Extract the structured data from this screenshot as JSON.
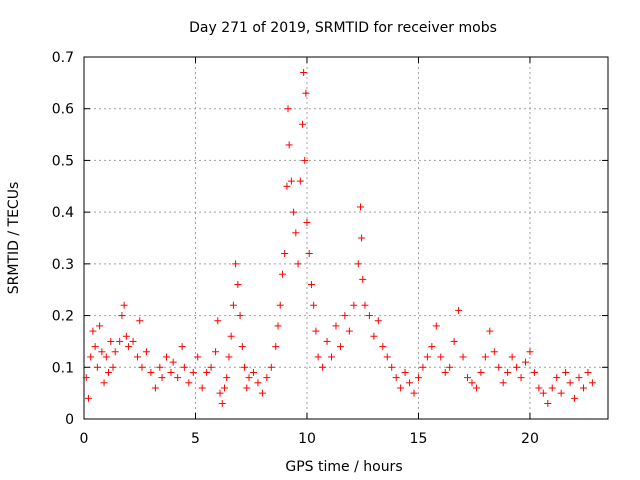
{
  "chart_data": {
    "type": "scatter",
    "title": "Day 271 of 2019, SRMTID for receiver mobs",
    "xlabel": "GPS time / hours",
    "ylabel": "SRMTID / TECUs",
    "xlim": [
      0,
      23.5
    ],
    "ylim": [
      0,
      0.7
    ],
    "xticks": [
      0,
      5,
      10,
      15,
      20
    ],
    "yticks": [
      0,
      0.1,
      0.2,
      0.3,
      0.4,
      0.5,
      0.6,
      0.7
    ],
    "xtick_labels": [
      "0",
      "5",
      "10",
      "15",
      "20"
    ],
    "ytick_labels": [
      "0",
      "0.1",
      "0.2",
      "0.3",
      "0.4",
      "0.5",
      "0.6",
      "0.7"
    ],
    "grid": true,
    "marker": "+",
    "series_color": "#ff0000",
    "series": [
      {
        "name": "SRMTID",
        "points": [
          [
            0.1,
            0.08
          ],
          [
            0.2,
            0.04
          ],
          [
            0.3,
            0.12
          ],
          [
            0.4,
            0.17
          ],
          [
            0.5,
            0.14
          ],
          [
            0.6,
            0.1
          ],
          [
            0.7,
            0.18
          ],
          [
            0.8,
            0.13
          ],
          [
            0.9,
            0.07
          ],
          [
            1.0,
            0.12
          ],
          [
            1.1,
            0.09
          ],
          [
            1.2,
            0.15
          ],
          [
            1.3,
            0.1
          ],
          [
            1.4,
            0.13
          ],
          [
            1.6,
            0.15
          ],
          [
            1.7,
            0.2
          ],
          [
            1.8,
            0.22
          ],
          [
            1.9,
            0.16
          ],
          [
            2.0,
            0.14
          ],
          [
            2.2,
            0.15
          ],
          [
            2.4,
            0.12
          ],
          [
            2.5,
            0.19
          ],
          [
            2.6,
            0.1
          ],
          [
            2.8,
            0.13
          ],
          [
            3.0,
            0.09
          ],
          [
            3.2,
            0.06
          ],
          [
            3.4,
            0.1
          ],
          [
            3.5,
            0.08
          ],
          [
            3.7,
            0.12
          ],
          [
            3.9,
            0.09
          ],
          [
            4.0,
            0.11
          ],
          [
            4.2,
            0.08
          ],
          [
            4.4,
            0.14
          ],
          [
            4.5,
            0.1
          ],
          [
            4.7,
            0.07
          ],
          [
            4.9,
            0.09
          ],
          [
            5.1,
            0.12
          ],
          [
            5.3,
            0.06
          ],
          [
            5.5,
            0.09
          ],
          [
            5.7,
            0.1
          ],
          [
            5.9,
            0.13
          ],
          [
            6.0,
            0.19
          ],
          [
            6.1,
            0.05
          ],
          [
            6.2,
            0.03
          ],
          [
            6.3,
            0.06
          ],
          [
            6.4,
            0.08
          ],
          [
            6.5,
            0.12
          ],
          [
            6.6,
            0.16
          ],
          [
            6.7,
            0.22
          ],
          [
            6.8,
            0.3
          ],
          [
            6.9,
            0.26
          ],
          [
            7.0,
            0.2
          ],
          [
            7.1,
            0.14
          ],
          [
            7.2,
            0.1
          ],
          [
            7.3,
            0.06
          ],
          [
            7.4,
            0.08
          ],
          [
            7.6,
            0.09
          ],
          [
            7.8,
            0.07
          ],
          [
            8.0,
            0.05
          ],
          [
            8.2,
            0.08
          ],
          [
            8.4,
            0.1
          ],
          [
            8.6,
            0.14
          ],
          [
            8.7,
            0.18
          ],
          [
            8.8,
            0.22
          ],
          [
            8.9,
            0.28
          ],
          [
            9.0,
            0.32
          ],
          [
            9.1,
            0.45
          ],
          [
            9.15,
            0.6
          ],
          [
            9.2,
            0.53
          ],
          [
            9.3,
            0.46
          ],
          [
            9.4,
            0.4
          ],
          [
            9.5,
            0.36
          ],
          [
            9.6,
            0.3
          ],
          [
            9.7,
            0.46
          ],
          [
            9.8,
            0.57
          ],
          [
            9.85,
            0.67
          ],
          [
            9.9,
            0.5
          ],
          [
            9.95,
            0.63
          ],
          [
            10.0,
            0.38
          ],
          [
            10.1,
            0.32
          ],
          [
            10.2,
            0.26
          ],
          [
            10.3,
            0.22
          ],
          [
            10.4,
            0.17
          ],
          [
            10.5,
            0.12
          ],
          [
            10.7,
            0.1
          ],
          [
            10.9,
            0.15
          ],
          [
            11.1,
            0.12
          ],
          [
            11.3,
            0.18
          ],
          [
            11.5,
            0.14
          ],
          [
            11.7,
            0.2
          ],
          [
            11.9,
            0.17
          ],
          [
            12.1,
            0.22
          ],
          [
            12.3,
            0.3
          ],
          [
            12.4,
            0.41
          ],
          [
            12.45,
            0.35
          ],
          [
            12.5,
            0.27
          ],
          [
            12.6,
            0.22
          ],
          [
            12.8,
            0.2
          ],
          [
            13.0,
            0.16
          ],
          [
            13.2,
            0.19
          ],
          [
            13.4,
            0.14
          ],
          [
            13.6,
            0.12
          ],
          [
            13.8,
            0.1
          ],
          [
            14.0,
            0.08
          ],
          [
            14.2,
            0.06
          ],
          [
            14.4,
            0.09
          ],
          [
            14.6,
            0.07
          ],
          [
            14.8,
            0.05
          ],
          [
            15.0,
            0.08
          ],
          [
            15.2,
            0.1
          ],
          [
            15.4,
            0.12
          ],
          [
            15.6,
            0.14
          ],
          [
            15.8,
            0.18
          ],
          [
            16.0,
            0.12
          ],
          [
            16.2,
            0.09
          ],
          [
            16.4,
            0.1
          ],
          [
            16.6,
            0.15
          ],
          [
            16.8,
            0.21
          ],
          [
            17.0,
            0.12
          ],
          [
            17.2,
            0.08
          ],
          [
            17.4,
            0.07
          ],
          [
            17.6,
            0.06
          ],
          [
            17.8,
            0.09
          ],
          [
            18.0,
            0.12
          ],
          [
            18.2,
            0.17
          ],
          [
            18.4,
            0.13
          ],
          [
            18.6,
            0.1
          ],
          [
            18.8,
            0.07
          ],
          [
            19.0,
            0.09
          ],
          [
            19.2,
            0.12
          ],
          [
            19.4,
            0.1
          ],
          [
            19.6,
            0.08
          ],
          [
            19.8,
            0.11
          ],
          [
            20.0,
            0.13
          ],
          [
            20.2,
            0.09
          ],
          [
            20.4,
            0.06
          ],
          [
            20.6,
            0.05
          ],
          [
            20.8,
            0.03
          ],
          [
            21.0,
            0.06
          ],
          [
            21.2,
            0.08
          ],
          [
            21.4,
            0.05
          ],
          [
            21.6,
            0.09
          ],
          [
            21.8,
            0.07
          ],
          [
            22.0,
            0.04
          ],
          [
            22.2,
            0.08
          ],
          [
            22.4,
            0.06
          ],
          [
            22.6,
            0.09
          ],
          [
            22.8,
            0.07
          ]
        ]
      }
    ]
  }
}
